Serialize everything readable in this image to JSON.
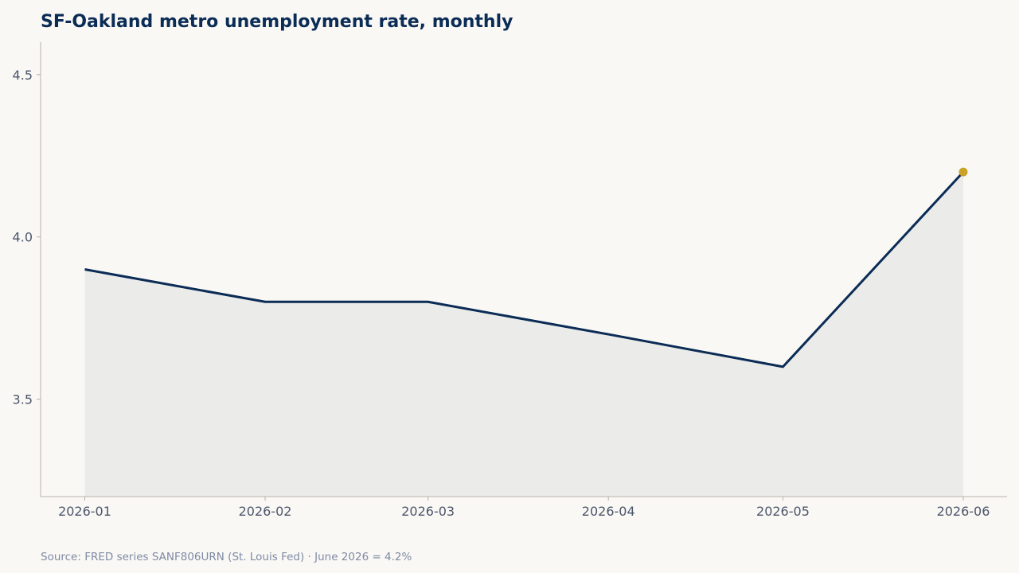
{
  "chart_data": {
    "type": "area",
    "title": "SF-Oakland metro unemployment rate, monthly",
    "xlabel": "",
    "ylabel": "",
    "categories": [
      "2026-01",
      "2026-02",
      "2026-03",
      "2026-04",
      "2026-05",
      "2026-06"
    ],
    "x": [
      "2026-01-01",
      "2026-02-01",
      "2026-03-01",
      "2026-04-01",
      "2026-05-01",
      "2026-06-01"
    ],
    "values": [
      3.9,
      3.8,
      3.8,
      3.7,
      3.6,
      4.2
    ],
    "ylim": [
      3.2,
      4.6
    ],
    "yticks": [
      3.5,
      4.0,
      4.5
    ],
    "ytick_labels": [
      "3.5",
      "4.0",
      "4.5"
    ],
    "grid": false,
    "highlight": {
      "category": "2026-06",
      "value": 4.2
    },
    "colors": {
      "line": "#0b2c55",
      "area": "#ebebea",
      "highlight": "#c9a227",
      "background": "#f9f8f5"
    },
    "source": "Source: FRED series SANF806URN (St. Louis Fed) · June 2026 = 4.2%"
  }
}
